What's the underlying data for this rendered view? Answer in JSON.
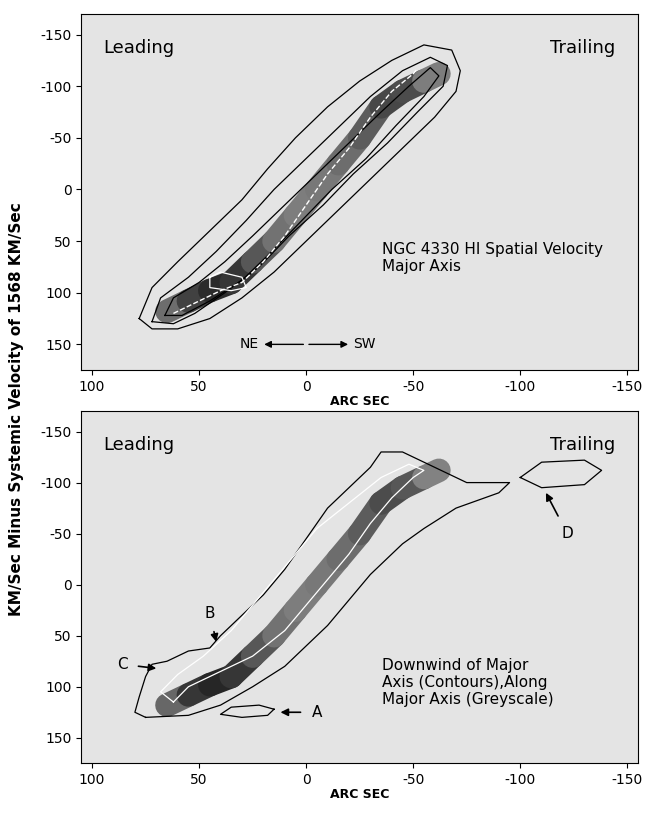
{
  "chart_data": [
    {
      "type": "position_velocity",
      "ylabel": "KM/Sec Minus Systemic Velocity of 1568 KM/Sec",
      "xlabel": "ARC SEC",
      "xlim": [
        105,
        -155
      ],
      "xticks": [
        100,
        50,
        0,
        -50,
        -100,
        -150
      ],
      "ylim": [
        175,
        -170
      ],
      "yticks": [
        -150,
        -100,
        -50,
        0,
        50,
        100,
        150
      ],
      "corner_labels": [
        "Leading",
        "Trailing"
      ],
      "panel_text": "NGC 4330 HI Spatial Velocity\nMajor Axis",
      "direction_labels": [
        {
          "text": "NE",
          "x": 22,
          "y": 150
        },
        {
          "text": "SW",
          "x": -22,
          "y": 150
        }
      ],
      "greyscale": {
        "x": [
          65,
          55,
          45,
          35,
          25,
          15,
          5,
          -5,
          -15,
          -25,
          -35,
          -45,
          -55,
          -62
        ],
        "y": [
          118,
          108,
          98,
          90,
          70,
          50,
          25,
          0,
          -25,
          -50,
          -80,
          -95,
          -105,
          -112
        ],
        "intensity": [
          0.55,
          0.8,
          0.95,
          1.0,
          0.85,
          0.7,
          0.6,
          0.6,
          0.65,
          0.7,
          0.8,
          0.9,
          0.75,
          0.45
        ]
      },
      "rotation_curve": {
        "color": "white",
        "line_style": "dashed",
        "x": [
          62,
          50,
          40,
          30,
          20,
          10,
          0,
          -10,
          -20,
          -30,
          -40,
          -50,
          -52
        ],
        "y": [
          120,
          108,
          98,
          90,
          70,
          45,
          15,
          -15,
          -40,
          -70,
          -95,
          -112,
          -117
        ]
      },
      "contours": [
        {
          "color": "black",
          "line_style": "solid",
          "points": [
            [
              78,
              125
            ],
            [
              72,
              95
            ],
            [
              60,
              70
            ],
            [
              45,
              40
            ],
            [
              30,
              10
            ],
            [
              18,
              -20
            ],
            [
              5,
              -50
            ],
            [
              -10,
              -80
            ],
            [
              -25,
              -105
            ],
            [
              -40,
              -125
            ],
            [
              -55,
              -140
            ],
            [
              -68,
              -135
            ],
            [
              -72,
              -115
            ],
            [
              -70,
              -95
            ],
            [
              -60,
              -70
            ],
            [
              -45,
              -40
            ],
            [
              -30,
              -10
            ],
            [
              -15,
              20
            ],
            [
              0,
              50
            ],
            [
              15,
              80
            ],
            [
              30,
              105
            ],
            [
              45,
              125
            ],
            [
              60,
              135
            ],
            [
              72,
              135
            ],
            [
              78,
              125
            ]
          ]
        },
        {
          "color": "black",
          "line_style": "solid",
          "points": [
            [
              72,
              128
            ],
            [
              68,
              105
            ],
            [
              55,
              85
            ],
            [
              42,
              60
            ],
            [
              28,
              30
            ],
            [
              15,
              0
            ],
            [
              0,
              -30
            ],
            [
              -15,
              -60
            ],
            [
              -30,
              -90
            ],
            [
              -45,
              -115
            ],
            [
              -58,
              -128
            ],
            [
              -66,
              -120
            ],
            [
              -64,
              -100
            ],
            [
              -52,
              -75
            ],
            [
              -38,
              -45
            ],
            [
              -22,
              -15
            ],
            [
              -8,
              15
            ],
            [
              8,
              45
            ],
            [
              22,
              75
            ],
            [
              38,
              100
            ],
            [
              52,
              120
            ],
            [
              62,
              130
            ],
            [
              72,
              128
            ]
          ]
        },
        {
          "color": "black",
          "line_style": "solid",
          "points": [
            [
              66,
              122
            ],
            [
              62,
              105
            ],
            [
              50,
              90
            ],
            [
              38,
              70
            ],
            [
              25,
              45
            ],
            [
              10,
              15
            ],
            [
              -5,
              -15
            ],
            [
              -20,
              -45
            ],
            [
              -35,
              -75
            ],
            [
              -48,
              -100
            ],
            [
              -58,
              -118
            ],
            [
              -62,
              -110
            ],
            [
              -55,
              -90
            ],
            [
              -42,
              -62
            ],
            [
              -28,
              -30
            ],
            [
              -12,
              0
            ],
            [
              2,
              30
            ],
            [
              16,
              60
            ],
            [
              30,
              88
            ],
            [
              45,
              108
            ],
            [
              58,
              122
            ],
            [
              66,
              122
            ]
          ]
        },
        {
          "color": "white",
          "line_style": "solid",
          "points": [
            [
              45,
              85
            ],
            [
              40,
              80
            ],
            [
              30,
              85
            ],
            [
              28,
              95
            ],
            [
              35,
              98
            ],
            [
              45,
              95
            ],
            [
              45,
              85
            ]
          ]
        }
      ]
    },
    {
      "type": "position_velocity",
      "xlabel": "ARC SEC",
      "xlim": [
        105,
        -155
      ],
      "xticks": [
        100,
        50,
        0,
        -50,
        -100,
        -150
      ],
      "ylim": [
        175,
        -170
      ],
      "yticks": [
        -150,
        -100,
        -50,
        0,
        50,
        100,
        150
      ],
      "corner_labels": [
        "Leading",
        "Trailing"
      ],
      "panel_text": "Downwind of Major\nAxis (Contours),Along\nMajor Axis (Greyscale)",
      "greyscale": {
        "x": [
          65,
          55,
          45,
          35,
          25,
          15,
          5,
          -5,
          -15,
          -25,
          -35,
          -45,
          -55,
          -62
        ],
        "y": [
          118,
          108,
          98,
          90,
          70,
          50,
          25,
          0,
          -25,
          -50,
          -80,
          -95,
          -105,
          -112
        ],
        "intensity": [
          0.55,
          0.85,
          1.0,
          1.0,
          0.85,
          0.7,
          0.6,
          0.6,
          0.65,
          0.7,
          0.8,
          0.85,
          0.7,
          0.45
        ]
      },
      "contours": [
        {
          "color": "black",
          "line_style": "solid",
          "points": [
            [
              75,
              130
            ],
            [
              55,
              128
            ],
            [
              40,
              118
            ],
            [
              25,
              100
            ],
            [
              10,
              80
            ],
            [
              0,
              60
            ],
            [
              -10,
              40
            ],
            [
              -20,
              15
            ],
            [
              -30,
              -10
            ],
            [
              -45,
              -40
            ],
            [
              -55,
              -55
            ],
            [
              -70,
              -75
            ],
            [
              -90,
              -90
            ],
            [
              -95,
              -100
            ],
            [
              -75,
              -100
            ],
            [
              -60,
              -115
            ],
            [
              -45,
              -130
            ],
            [
              -35,
              -130
            ],
            [
              -30,
              -115
            ],
            [
              -20,
              -95
            ],
            [
              -10,
              -75
            ],
            [
              0,
              -45
            ],
            [
              10,
              -15
            ],
            [
              20,
              10
            ],
            [
              30,
              30
            ],
            [
              40,
              50
            ],
            [
              45,
              62
            ],
            [
              55,
              65
            ],
            [
              65,
              75
            ],
            [
              72,
              78
            ],
            [
              75,
              90
            ],
            [
              78,
              110
            ],
            [
              80,
              125
            ],
            [
              75,
              130
            ]
          ]
        },
        {
          "color": "black",
          "line_style": "solid",
          "points": [
            [
              -100,
              -105
            ],
            [
              -110,
              -120
            ],
            [
              -130,
              -122
            ],
            [
              -138,
              -112
            ],
            [
              -130,
              -98
            ],
            [
              -110,
              -95
            ],
            [
              -100,
              -105
            ]
          ]
        },
        {
          "color": "black",
          "line_style": "solid",
          "points": [
            [
              15,
              122
            ],
            [
              22,
              118
            ],
            [
              35,
              120
            ],
            [
              40,
              127
            ],
            [
              30,
              130
            ],
            [
              18,
              128
            ],
            [
              15,
              122
            ]
          ]
        },
        {
          "color": "white",
          "line_style": "solid",
          "points": [
            [
              62,
              115
            ],
            [
              55,
              100
            ],
            [
              40,
              85
            ],
            [
              25,
              70
            ],
            [
              10,
              45
            ],
            [
              0,
              20
            ],
            [
              -10,
              -5
            ],
            [
              -20,
              -30
            ],
            [
              -30,
              -60
            ],
            [
              -40,
              -85
            ],
            [
              -50,
              -105
            ],
            [
              -55,
              -112
            ],
            [
              -48,
              -118
            ],
            [
              -35,
              -105
            ],
            [
              -20,
              -80
            ],
            [
              -5,
              -55
            ],
            [
              5,
              -30
            ],
            [
              15,
              -5
            ],
            [
              25,
              20
            ],
            [
              35,
              45
            ],
            [
              48,
              70
            ],
            [
              60,
              88
            ],
            [
              68,
              105
            ],
            [
              62,
              115
            ]
          ]
        }
      ],
      "annotations": [
        {
          "text": "A",
          "x": 12,
          "y": 125,
          "text_x": -5,
          "text_y": 125
        },
        {
          "text": "B",
          "x": 42,
          "y": 56,
          "text_x": 45,
          "text_y": 28
        },
        {
          "text": "C",
          "x": 70,
          "y": 82,
          "text_x": 86,
          "text_y": 78
        },
        {
          "text": "D",
          "x": -112,
          "y": -90,
          "text_x": -122,
          "text_y": -50
        }
      ]
    }
  ]
}
